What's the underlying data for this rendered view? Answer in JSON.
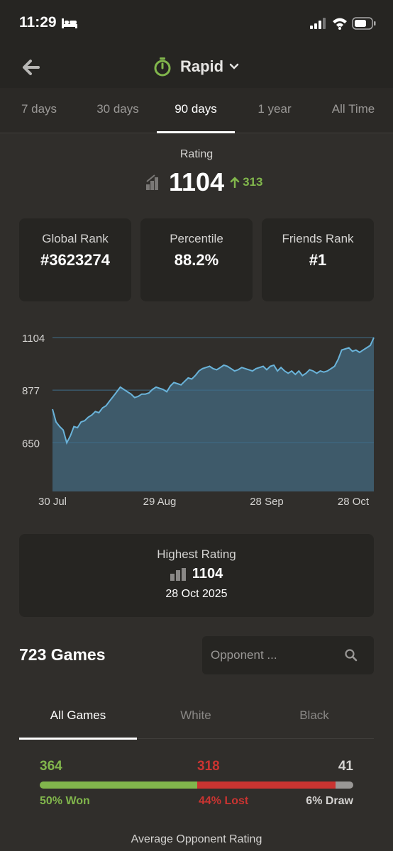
{
  "status_bar": {
    "time": "11:29"
  },
  "header": {
    "title": "Rapid"
  },
  "range_tabs": [
    "7 days",
    "30 days",
    "90 days",
    "1 year",
    "All Time"
  ],
  "rating": {
    "label": "Rating",
    "value": "1104",
    "change": "313"
  },
  "stats": [
    {
      "label": "Global Rank",
      "value": "#3623274"
    },
    {
      "label": "Percentile",
      "value": "88.2%"
    },
    {
      "label": "Friends Rank",
      "value": "#1"
    }
  ],
  "chart_data": {
    "type": "area",
    "title": "",
    "xlabel": "",
    "ylabel": "",
    "x_tick_labels": [
      "30 Jul",
      "29 Aug",
      "28 Sep",
      "28 Oct"
    ],
    "y_tick_labels": [
      "1104",
      "877",
      "650"
    ],
    "yticks": [
      1104,
      877,
      650
    ],
    "ylim": [
      440,
      1104
    ],
    "grid": true,
    "x": [
      0,
      1,
      2,
      3,
      4,
      5,
      6,
      7,
      8,
      9,
      10,
      11,
      12,
      13,
      14,
      15,
      16,
      17,
      18,
      19,
      20,
      21,
      22,
      23,
      24,
      25,
      26,
      27,
      28,
      29,
      30,
      31,
      32,
      33,
      34,
      35,
      36,
      37,
      38,
      39,
      40,
      41,
      42,
      43,
      44,
      45,
      46,
      47,
      48,
      49,
      50,
      51,
      52,
      53,
      54,
      55,
      56,
      57,
      58,
      59,
      60,
      61,
      62,
      63,
      64,
      65,
      66,
      67,
      68,
      69,
      70,
      71,
      72,
      73,
      74,
      75,
      76,
      77,
      78,
      79,
      80,
      81,
      82,
      83,
      84,
      85,
      86,
      87,
      88,
      89,
      90
    ],
    "series": [
      {
        "values": [
          795,
          740,
          720,
          705,
          650,
          680,
          720,
          715,
          740,
          745,
          760,
          770,
          785,
          780,
          800,
          810,
          830,
          850,
          870,
          890,
          880,
          870,
          860,
          845,
          850,
          860,
          860,
          865,
          880,
          890,
          885,
          880,
          870,
          895,
          910,
          905,
          900,
          915,
          930,
          925,
          940,
          960,
          970,
          975,
          980,
          970,
          965,
          975,
          985,
          980,
          970,
          960,
          965,
          975,
          970,
          965,
          960,
          970,
          975,
          980,
          965,
          980,
          985,
          960,
          975,
          960,
          950,
          960,
          945,
          960,
          940,
          950,
          965,
          960,
          950,
          960,
          955,
          960,
          970,
          980,
          1010,
          1050,
          1055,
          1060,
          1045,
          1050,
          1040,
          1050,
          1060,
          1070,
          1104
        ]
      }
    ]
  },
  "highest": {
    "label": "Highest Rating",
    "value": "1104",
    "date": "28 Oct 2025"
  },
  "games": {
    "title": "723 Games",
    "placeholder": "Opponent ..."
  },
  "color_tabs": [
    "All Games",
    "White",
    "Black"
  ],
  "results": {
    "won": "364",
    "lost": "318",
    "draw": "41",
    "won_pct": "50% Won",
    "lost_pct": "44% Lost",
    "draw_pct": "6% Draw",
    "won_frac": 0.503,
    "lost_frac": 0.44,
    "draw_frac": 0.057,
    "colors": {
      "won": "#81b64c",
      "lost": "#ca3431",
      "draw": "#9a9896"
    }
  },
  "avg_opponent_label": "Average Opponent Rating",
  "colors": {
    "accent_green": "#81b64c",
    "chart_fill": "#3e5a6a",
    "chart_line": "#6ab3d9"
  }
}
